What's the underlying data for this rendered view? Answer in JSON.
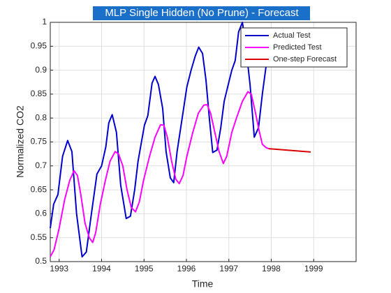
{
  "chart_data": {
    "type": "line",
    "title": "MLP Single Hidden (No Prune) - Forecast",
    "xlabel": "Time",
    "ylabel": "Normalized CO2",
    "xlim": [
      1992.79,
      2000
    ],
    "ylim": [
      0.5,
      1
    ],
    "xticks": [
      1993,
      1994,
      1995,
      1996,
      1997,
      1998,
      1999
    ],
    "yticks": [
      0.5,
      0.55,
      0.6,
      0.65,
      0.7,
      0.75,
      0.8,
      0.85,
      0.9,
      0.95,
      1
    ],
    "grid": true,
    "legend": "northeast",
    "series": [
      {
        "name": "Actual Test",
        "color": "#0000cc",
        "x": [
          1992.79,
          1992.87,
          1992.97,
          1993.08,
          1993.2,
          1993.3,
          1993.41,
          1993.54,
          1993.64,
          1993.76,
          1993.89,
          1994.0,
          1994.1,
          1994.17,
          1994.25,
          1994.35,
          1994.45,
          1994.58,
          1994.68,
          1994.78,
          1994.86,
          1995.01,
          1995.09,
          1995.19,
          1995.26,
          1995.34,
          1995.44,
          1995.52,
          1995.62,
          1995.7,
          1995.78,
          1995.9,
          1996.01,
          1996.11,
          1996.21,
          1996.29,
          1996.38,
          1996.46,
          1996.54,
          1996.62,
          1996.72,
          1996.81,
          1996.89,
          1997.0,
          1997.07,
          1997.15,
          1997.23,
          1997.32,
          1997.4,
          1997.5,
          1997.6,
          1997.7,
          1997.79,
          1997.88,
          1997.93
        ],
        "values": [
          0.57,
          0.62,
          0.64,
          0.72,
          0.753,
          0.73,
          0.6,
          0.51,
          0.52,
          0.6,
          0.683,
          0.7,
          0.74,
          0.79,
          0.807,
          0.77,
          0.66,
          0.59,
          0.595,
          0.65,
          0.71,
          0.785,
          0.805,
          0.873,
          0.887,
          0.87,
          0.82,
          0.73,
          0.675,
          0.665,
          0.73,
          0.8,
          0.865,
          0.9,
          0.93,
          0.948,
          0.935,
          0.88,
          0.8,
          0.728,
          0.733,
          0.78,
          0.835,
          0.875,
          0.9,
          0.92,
          0.98,
          1.0,
          0.95,
          0.87,
          0.76,
          0.78,
          0.85,
          0.91,
          0.94
        ]
      },
      {
        "name": "Predicted Test",
        "color": "#ff00ff",
        "x": [
          1992.79,
          1992.88,
          1993.0,
          1993.13,
          1993.25,
          1993.35,
          1993.43,
          1993.51,
          1993.61,
          1993.71,
          1993.79,
          1993.86,
          1993.97,
          1994.09,
          1994.2,
          1994.32,
          1994.4,
          1994.5,
          1994.6,
          1994.7,
          1994.8,
          1994.89,
          1994.99,
          1995.13,
          1995.26,
          1995.39,
          1995.47,
          1995.55,
          1995.65,
          1995.75,
          1995.83,
          1995.92,
          1996.01,
          1996.15,
          1996.28,
          1996.41,
          1996.49,
          1996.57,
          1996.67,
          1996.77,
          1996.87,
          1996.95,
          1997.07,
          1997.18,
          1997.32,
          1997.45,
          1997.53,
          1997.63,
          1997.71,
          1997.79,
          1997.88,
          1997.94
        ],
        "values": [
          0.51,
          0.525,
          0.57,
          0.63,
          0.67,
          0.69,
          0.68,
          0.64,
          0.58,
          0.55,
          0.54,
          0.56,
          0.62,
          0.67,
          0.71,
          0.73,
          0.725,
          0.7,
          0.65,
          0.613,
          0.604,
          0.625,
          0.67,
          0.72,
          0.76,
          0.786,
          0.785,
          0.76,
          0.71,
          0.672,
          0.663,
          0.68,
          0.72,
          0.77,
          0.81,
          0.827,
          0.828,
          0.81,
          0.77,
          0.73,
          0.705,
          0.72,
          0.77,
          0.8,
          0.835,
          0.855,
          0.85,
          0.81,
          0.775,
          0.745,
          0.738,
          0.736
        ]
      },
      {
        "name": "One-step Forecast",
        "color": "#dd0000",
        "x": [
          1997.94,
          1998.93
        ],
        "values": [
          0.736,
          0.729
        ]
      }
    ]
  }
}
